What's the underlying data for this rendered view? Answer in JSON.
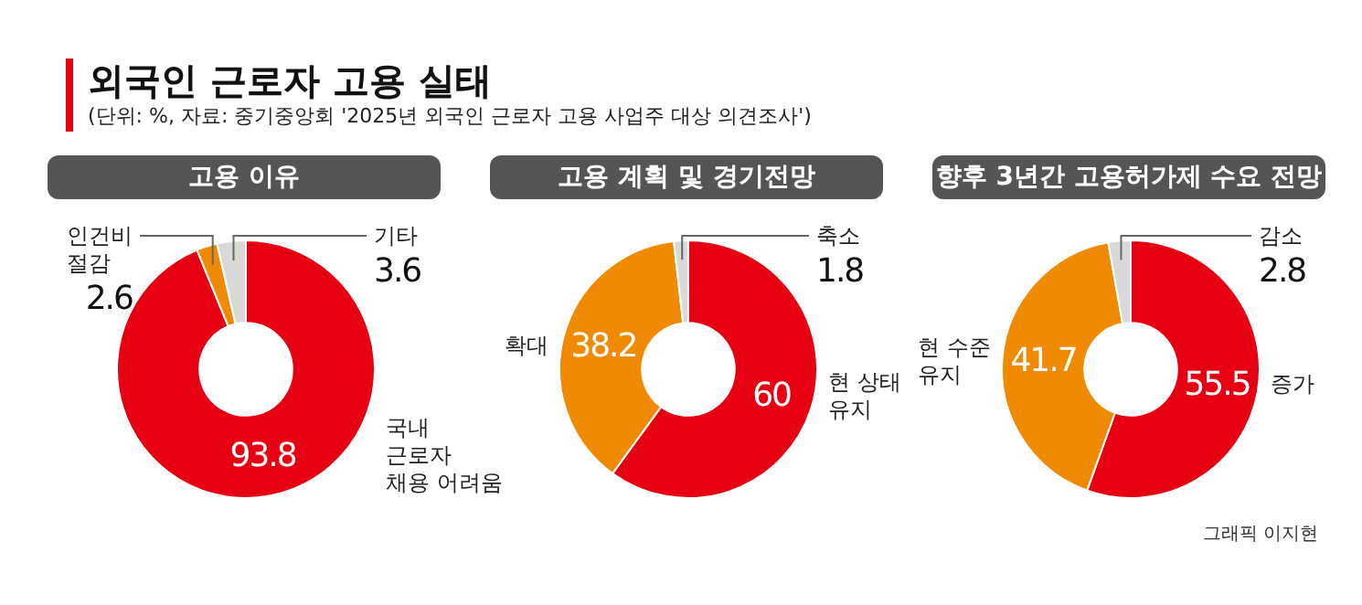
{
  "chart_data": [
    {
      "type": "other",
      "title": "외국인 근로자 고용 실태",
      "annotations": [
        "(단위: %, 자료: 중기중앙회 '2025년 외국인 근로자 고용 사업주 대상 의견조사')"
      ]
    },
    {
      "type": "donut",
      "title": "고용 이유",
      "categories": [
        "국내\n근로자\n채용 어려움",
        "인건비\n절감",
        "기타"
      ],
      "values": [
        93.8,
        2.6,
        3.6
      ],
      "colors": [
        "#e60012",
        "#f08a00",
        "#d9d9d9"
      ],
      "data_labels": true
    },
    {
      "type": "donut",
      "title": "고용 계획 및 경기전망",
      "categories": [
        "현 상태\n유지",
        "확대",
        "축소"
      ],
      "values": [
        60,
        38.2,
        1.8
      ],
      "colors": [
        "#e60012",
        "#f08a00",
        "#d9d9d9"
      ],
      "data_labels": true
    },
    {
      "type": "donut",
      "title": "향후 3년간 고용허가제 수요 전망",
      "categories": [
        "증가",
        "현 수준\n유지",
        "감소"
      ],
      "values": [
        55.5,
        41.7,
        2.8
      ],
      "colors": [
        "#e60012",
        "#f08a00",
        "#d9d9d9"
      ],
      "data_labels": true,
      "annotations": [
        "그래픽 이지현"
      ]
    }
  ]
}
